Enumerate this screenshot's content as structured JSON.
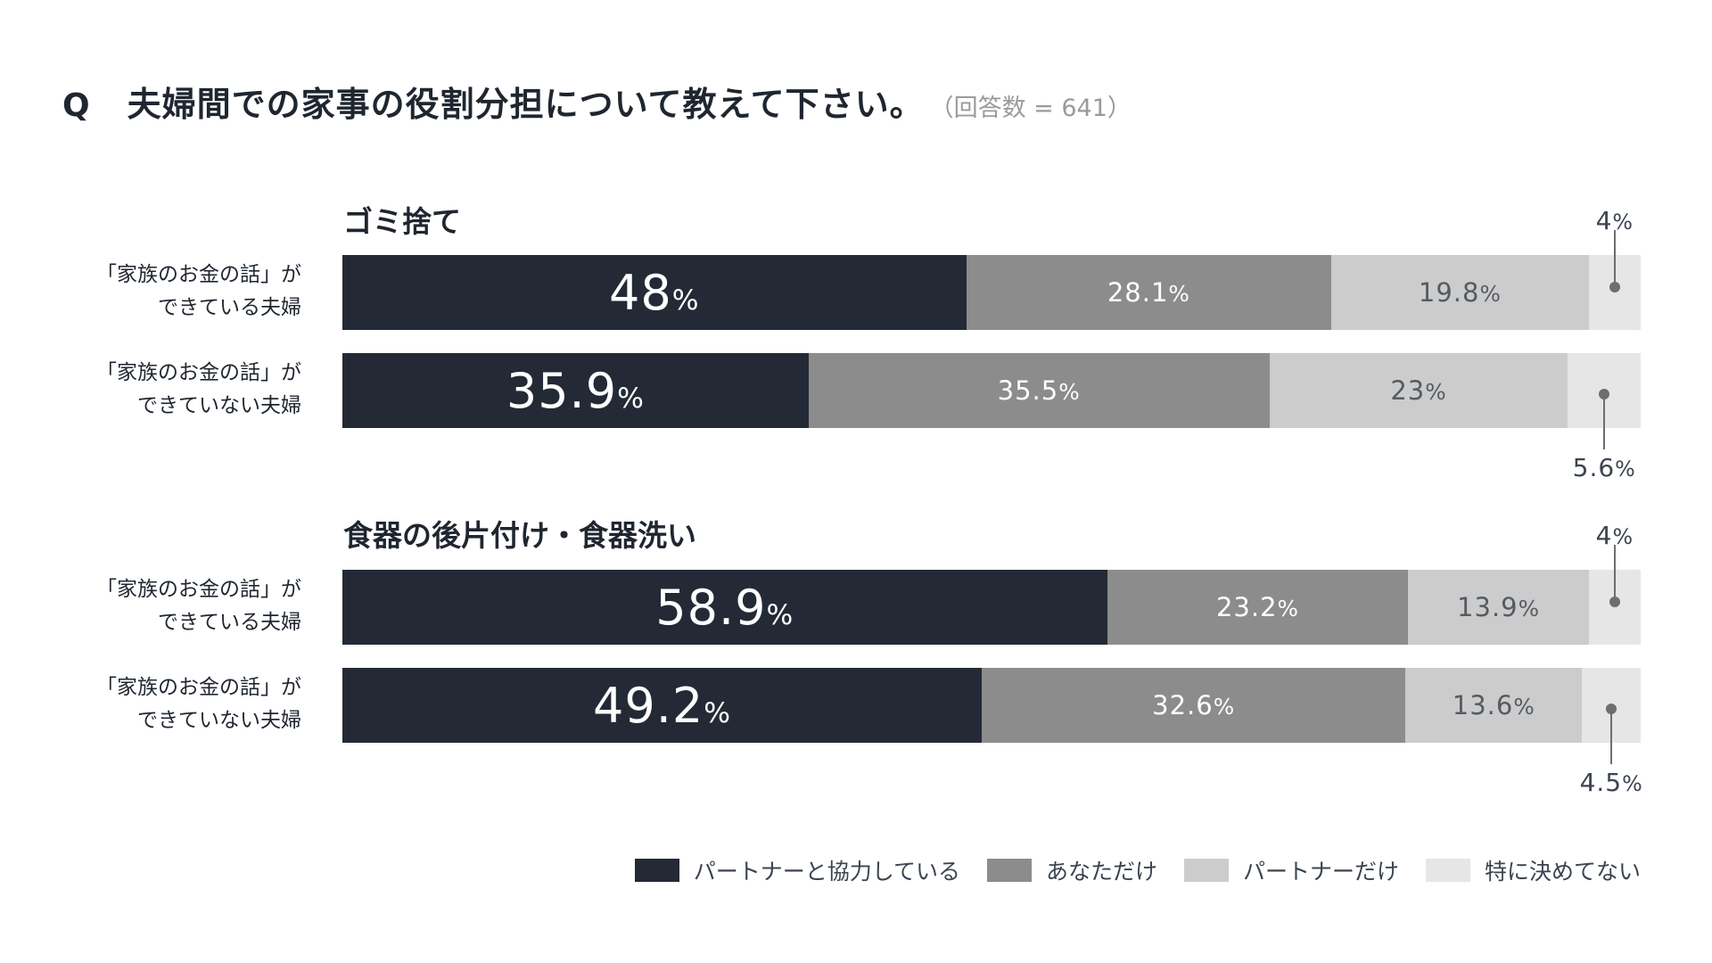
{
  "question": {
    "mark": "Q",
    "text": "夫婦間での家事の役割分担について教えて下さい。",
    "count": "（回答数 = 641）"
  },
  "colors": {
    "partner_cooperate": "#232a35",
    "only_you": "#8c8c8c",
    "only_partner": "#cccccc",
    "not_decided": "#e6e6e6"
  },
  "chart_data": {
    "type": "bar",
    "orientation": "horizontal",
    "stacked": true,
    "unit": "%",
    "legend_position": "bottom-right",
    "series_names": [
      "パートナーと協力している",
      "あなただけ",
      "パートナーだけ",
      "特に決めてない"
    ],
    "groups": [
      {
        "title": "ゴミ捨て",
        "rows": [
          {
            "label_line1": "「家族のお金の話」が",
            "label_line2": "できている夫婦",
            "values": [
              48,
              28.1,
              19.8,
              4
            ],
            "labels": [
              "48",
              "28.1",
              "19.8",
              "4"
            ]
          },
          {
            "label_line1": "「家族のお金の話」が",
            "label_line2": "できていない夫婦",
            "values": [
              35.9,
              35.5,
              23,
              5.6
            ],
            "labels": [
              "35.9",
              "35.5",
              "23",
              "5.6"
            ]
          }
        ]
      },
      {
        "title": "食器の後片付け・食器洗い",
        "rows": [
          {
            "label_line1": "「家族のお金の話」が",
            "label_line2": "できている夫婦",
            "values": [
              58.9,
              23.2,
              13.9,
              4
            ],
            "labels": [
              "58.9",
              "23.2",
              "13.9",
              "4"
            ]
          },
          {
            "label_line1": "「家族のお金の話」が",
            "label_line2": "できていない夫婦",
            "values": [
              49.2,
              32.6,
              13.6,
              4.5
            ],
            "labels": [
              "49.2",
              "32.6",
              "13.6",
              "4.5"
            ]
          }
        ]
      }
    ]
  }
}
